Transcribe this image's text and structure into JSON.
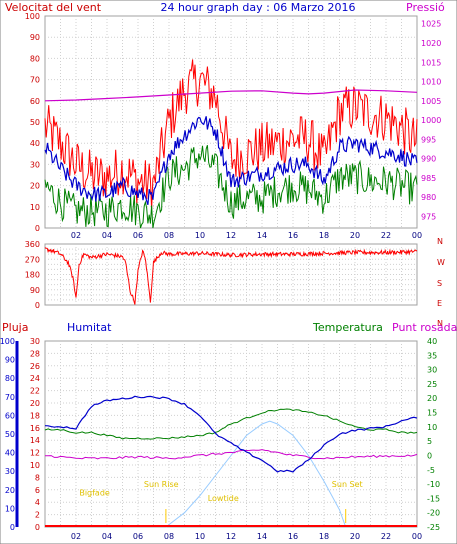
{
  "chart_data": [
    {
      "type": "line",
      "title": "24 hour graph day : 06 Marzo 2016",
      "ylabel_left": "Velocitat del vent",
      "ylabel_right": "Pressió",
      "x_ticks": [
        "02",
        "04",
        "06",
        "08",
        "10",
        "12",
        "14",
        "16",
        "18",
        "20",
        "22",
        "00"
      ],
      "ylim_left": [
        0,
        100
      ],
      "y_ticks_left": [
        0,
        10,
        20,
        30,
        40,
        50,
        60,
        70,
        80,
        90,
        100
      ],
      "ylim_right": [
        972,
        1027
      ],
      "y_ticks_right": [
        975,
        980,
        985,
        990,
        995,
        1000,
        1005,
        1010,
        1015,
        1020,
        1025
      ],
      "grid": true,
      "colors": {
        "gust": "#ff0000",
        "average": "#0000cc",
        "minimum": "#008000",
        "pressure": "#cc00cc"
      },
      "series": [
        {
          "key": "gust",
          "x": [
            0,
            1,
            2,
            3,
            4,
            5,
            6,
            7,
            8,
            9,
            10,
            11,
            12,
            13,
            14,
            15,
            16,
            17,
            18,
            19,
            20,
            21,
            22,
            23,
            24
          ],
          "values": [
            48,
            40,
            30,
            25,
            24,
            28,
            22,
            20,
            50,
            65,
            70,
            62,
            32,
            35,
            38,
            40,
            42,
            42,
            32,
            55,
            57,
            54,
            52,
            47,
            40
          ]
        },
        {
          "key": "average",
          "x": [
            0,
            1,
            2,
            3,
            4,
            5,
            6,
            7,
            8,
            9,
            10,
            11,
            12,
            13,
            14,
            15,
            16,
            17,
            18,
            19,
            20,
            21,
            22,
            23,
            24
          ],
          "values": [
            38,
            28,
            20,
            16,
            16,
            20,
            16,
            14,
            35,
            44,
            52,
            46,
            22,
            24,
            26,
            28,
            30,
            30,
            22,
            38,
            40,
            38,
            36,
            34,
            30
          ]
        },
        {
          "key": "minimum",
          "x": [
            0,
            1,
            2,
            3,
            4,
            5,
            6,
            7,
            8,
            9,
            10,
            11,
            12,
            13,
            14,
            15,
            16,
            17,
            18,
            19,
            20,
            21,
            22,
            23,
            24
          ],
          "values": [
            20,
            12,
            8,
            8,
            8,
            11,
            8,
            6,
            25,
            28,
            35,
            28,
            12,
            14,
            14,
            18,
            20,
            18,
            14,
            24,
            24,
            22,
            22,
            20,
            18
          ]
        },
        {
          "key": "pressure",
          "x": [
            0,
            2,
            4,
            6,
            8,
            10,
            12,
            14,
            16,
            17,
            18,
            20,
            22,
            24
          ],
          "values": [
            1005,
            1005.2,
            1005.6,
            1006,
            1006.5,
            1007,
            1007.5,
            1007.6,
            1007,
            1006.8,
            1007,
            1007.8,
            1007.6,
            1007.2
          ]
        }
      ]
    },
    {
      "type": "line",
      "ylabel_right": [
        "N",
        "W",
        "S",
        "E",
        "N"
      ],
      "y_ticks_left": [
        0,
        30,
        60,
        90,
        120,
        150,
        180,
        210,
        240,
        270,
        300,
        330,
        360
      ],
      "y_tick_labels_left": [
        "0",
        "90",
        "180",
        "270",
        "360"
      ],
      "ylim": [
        0,
        360
      ],
      "grid": true,
      "color": "#ff0000",
      "series": [
        {
          "name": "",
          "x": [
            0,
            0.5,
            1,
            1.5,
            1.8,
            2,
            2.2,
            2.5,
            3,
            4,
            5,
            5.2,
            5.5,
            5.8,
            6,
            6.3,
            6.5,
            6.8,
            7,
            7.5,
            8,
            10,
            12,
            14,
            16,
            18,
            20,
            22,
            24
          ],
          "values": [
            330,
            320,
            300,
            250,
            160,
            40,
            240,
            300,
            280,
            300,
            285,
            250,
            80,
            15,
            200,
            320,
            260,
            20,
            250,
            310,
            300,
            305,
            295,
            300,
            300,
            305,
            310,
            310,
            315
          ]
        }
      ]
    },
    {
      "type": "line",
      "ylabel_left_1": "Pluja",
      "ylabel_left_2": "Humitat",
      "ylabel_right_1": "Temperatura",
      "ylabel_right_2": "Punt rosada",
      "ylim_humidity": [
        0,
        100
      ],
      "y_ticks_humidity": [
        0,
        10,
        20,
        30,
        40,
        50,
        60,
        70,
        80,
        90,
        100
      ],
      "ylim_rain": [
        0,
        30
      ],
      "y_ticks_rain": [
        0,
        2,
        4,
        6,
        8,
        10,
        12,
        14,
        16,
        18,
        20,
        22,
        24,
        26,
        28,
        30
      ],
      "ylim_temp": [
        -25,
        40
      ],
      "y_ticks_temp": [
        -25,
        -20,
        -15,
        -10,
        -5,
        0,
        5,
        10,
        15,
        20,
        25,
        30,
        35,
        40
      ],
      "colors": {
        "humidity": "#0000cc",
        "temperature": "#008000",
        "dewpoint": "#cc00cc",
        "solar": "#99ccff",
        "rain": "#ff0000"
      },
      "annotations": [
        {
          "text": "Bigfade",
          "x": 3.2,
          "y_temp": -14
        },
        {
          "text": "Sun Rise",
          "x": 7.5,
          "y_temp": -11
        },
        {
          "text": "Lowtide",
          "x": 11.5,
          "y_temp": -16
        },
        {
          "text": "Sun Set",
          "x": 19.5,
          "y_temp": -11
        }
      ],
      "sun_rise_x": 7.8,
      "sun_set_x": 19.4,
      "series": [
        {
          "key": "humidity",
          "x": [
            0,
            1,
            2,
            3,
            4,
            5,
            6,
            7,
            8,
            9,
            10,
            11,
            12,
            13,
            14,
            15,
            16,
            17,
            18,
            19,
            20,
            21,
            22,
            23,
            24
          ],
          "values": [
            54,
            54,
            53,
            65,
            68,
            69,
            70,
            70,
            69,
            66,
            60,
            50,
            45,
            40,
            36,
            30,
            30,
            36,
            44,
            50,
            52,
            53,
            54,
            57,
            59
          ]
        },
        {
          "key": "temperature",
          "x": [
            0,
            1,
            2,
            3,
            4,
            5,
            6,
            7,
            8,
            9,
            10,
            11,
            12,
            13,
            14,
            15,
            16,
            17,
            18,
            19,
            20,
            21,
            22,
            23,
            24
          ],
          "values": [
            9,
            9,
            8,
            8,
            7,
            6,
            6,
            6,
            6,
            6.5,
            7,
            8,
            11,
            13,
            15,
            16,
            16,
            15,
            14,
            12,
            10,
            9,
            9,
            8,
            8
          ]
        },
        {
          "key": "dewpoint",
          "x": [
            0,
            2,
            4,
            6,
            8,
            10,
            12,
            14,
            16,
            18,
            20,
            22,
            24
          ],
          "values": [
            0,
            -1,
            -1,
            -0.5,
            -1,
            0,
            1,
            2,
            0,
            -1,
            -0.5,
            -0.2,
            0
          ]
        },
        {
          "key": "solar",
          "x": [
            7.8,
            9,
            10,
            11,
            12,
            13,
            14,
            14.5,
            15,
            16,
            17,
            18,
            19,
            19.4
          ],
          "values": [
            -25,
            -20,
            -14,
            -7,
            0,
            7,
            11,
            12,
            11,
            7,
            0,
            -9,
            -19,
            -25
          ]
        },
        {
          "key": "rain",
          "x": [
            0,
            24
          ],
          "values": [
            0,
            0
          ]
        }
      ]
    }
  ]
}
